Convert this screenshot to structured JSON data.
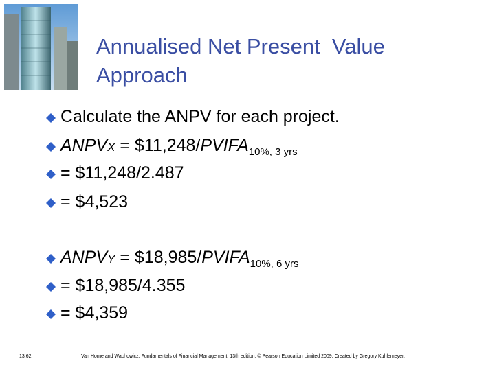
{
  "title": [
    "Annualised Net Present  Value",
    "Approach"
  ],
  "bullets": [
    {
      "text": "Calculate the ANPV for each project."
    },
    {
      "var": "ANPV",
      "var_sub": "X",
      "eq": " = $11,248/",
      "factor": "PVIFA",
      "factor_sub": "10%, 3 yrs"
    },
    {
      "text": "= $11,248/2.487"
    },
    {
      "text": "= $4,523"
    },
    {
      "var": "ANPV",
      "var_sub": "Y",
      "eq": " = $18,985/",
      "factor": "PVIFA",
      "factor_sub": "10%, 6 yrs"
    },
    {
      "text": "= $18,985/4.355"
    },
    {
      "text": "= $4,359"
    }
  ],
  "slide_number": "13.62",
  "footer": "Van Horne and Wachowicz, Fundamentals of Financial Management, 13th edition. © Pearson Education Limited 2009. Created by Gregory Kuhlemeyer."
}
